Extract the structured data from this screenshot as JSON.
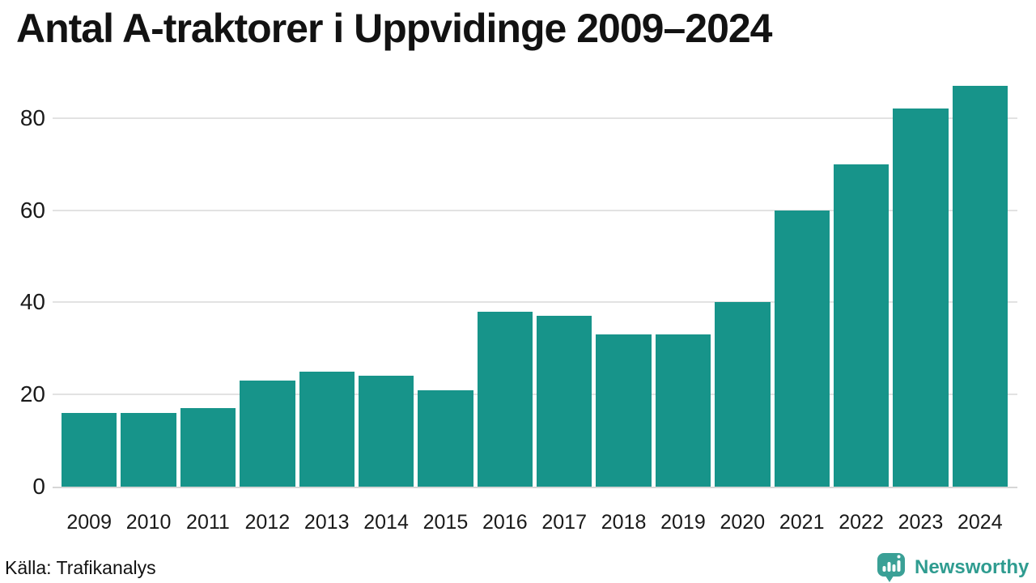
{
  "header": {
    "title": "Antal A-traktorer i Uppvidinge 2009–2024"
  },
  "chart_data": {
    "type": "bar",
    "title": "Antal A-traktorer i Uppvidinge 2009–2024",
    "categories": [
      "2009",
      "2010",
      "2011",
      "2012",
      "2013",
      "2014",
      "2015",
      "2016",
      "2017",
      "2018",
      "2019",
      "2020",
      "2021",
      "2022",
      "2023",
      "2024"
    ],
    "values": [
      16,
      16,
      17,
      23,
      25,
      24,
      21,
      38,
      37,
      33,
      33,
      40,
      60,
      70,
      82,
      87
    ],
    "xlabel": "",
    "ylabel": "",
    "ylim": [
      0,
      90
    ],
    "yticks": [
      0,
      20,
      40,
      60,
      80
    ],
    "grid": "horizontal",
    "legend": "none",
    "bar_color": "#17948a"
  },
  "footer": {
    "source": "Källa: Trafikanalys",
    "brand": {
      "name": "Newsworthy",
      "icon": "newsworthy-speech-bubble-chart-icon",
      "color": "#2f9c90"
    }
  },
  "colors": {
    "bar": "#17948a",
    "gridline": "#e2e2e2",
    "axis_text": "#1a1a1a",
    "title_text": "#121212",
    "background": "#ffffff",
    "brand": "#2f9c90",
    "brand_bubble": "#3aa096"
  }
}
